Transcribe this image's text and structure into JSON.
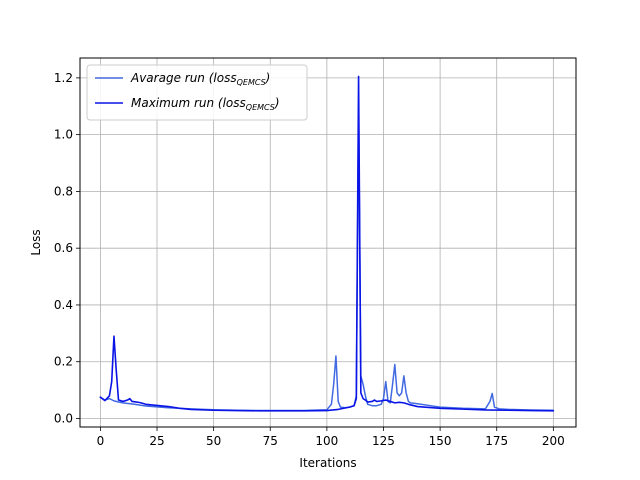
{
  "chart_data": {
    "type": "line",
    "xlabel": "Iterations",
    "ylabel": "Loss",
    "xlim": [
      -9,
      210
    ],
    "ylim": [
      -0.03,
      1.27
    ],
    "x_ticks": [
      0,
      25,
      50,
      75,
      100,
      125,
      150,
      175,
      200
    ],
    "y_ticks": [
      0.0,
      0.2,
      0.4,
      0.6,
      0.8,
      1.0,
      1.2
    ],
    "x_tick_labels": [
      "0",
      "25",
      "50",
      "75",
      "100",
      "125",
      "150",
      "175",
      "200"
    ],
    "y_tick_labels": [
      "0.0",
      "0.2",
      "0.4",
      "0.6",
      "0.8",
      "1.0",
      "1.2"
    ],
    "grid": true,
    "legend_position": "top-left",
    "series": [
      {
        "name": "Avarage run (loss_QEMCS)",
        "legend_main": "Avarage run (loss",
        "legend_sub": "QEMCS",
        "legend_close": ")",
        "color": "#4169e1",
        "x": [
          0,
          2,
          4,
          6,
          8,
          10,
          15,
          20,
          30,
          40,
          50,
          60,
          70,
          80,
          90,
          100,
          102,
          103,
          104,
          105,
          106,
          108,
          110,
          112,
          113,
          114,
          115,
          116,
          117,
          118,
          120,
          122,
          124,
          125,
          126,
          127,
          128,
          129,
          130,
          131,
          132,
          133,
          134,
          135,
          136,
          137,
          140,
          145,
          150,
          160,
          170,
          172,
          173,
          174,
          176,
          180,
          190,
          200
        ],
        "y": [
          0.075,
          0.065,
          0.07,
          0.062,
          0.058,
          0.055,
          0.05,
          0.044,
          0.038,
          0.034,
          0.031,
          0.029,
          0.028,
          0.028,
          0.028,
          0.031,
          0.05,
          0.12,
          0.22,
          0.06,
          0.04,
          0.038,
          0.04,
          0.045,
          0.08,
          1.1,
          0.15,
          0.12,
          0.08,
          0.05,
          0.045,
          0.045,
          0.05,
          0.07,
          0.13,
          0.06,
          0.055,
          0.12,
          0.19,
          0.09,
          0.08,
          0.09,
          0.15,
          0.09,
          0.06,
          0.055,
          0.052,
          0.046,
          0.04,
          0.036,
          0.034,
          0.06,
          0.088,
          0.04,
          0.034,
          0.032,
          0.03,
          0.029
        ]
      },
      {
        "name": "Maximum run (loss_QEMCS)",
        "legend_main": "Maximum run (loss",
        "legend_sub": "QEMCS",
        "legend_close": ")",
        "color": "#0a14e6",
        "x": [
          0,
          2,
          4,
          5,
          6,
          7,
          8,
          10,
          12,
          13,
          14,
          16,
          18,
          20,
          25,
          30,
          35,
          40,
          50,
          60,
          70,
          80,
          90,
          100,
          105,
          110,
          112,
          113,
          114,
          115,
          116,
          117,
          118,
          120,
          121,
          122,
          124,
          126,
          128,
          130,
          132,
          134,
          136,
          140,
          150,
          160,
          170,
          180,
          190,
          200
        ],
        "y": [
          0.075,
          0.063,
          0.08,
          0.13,
          0.29,
          0.17,
          0.065,
          0.06,
          0.065,
          0.07,
          0.06,
          0.058,
          0.055,
          0.05,
          0.046,
          0.042,
          0.036,
          0.032,
          0.029,
          0.028,
          0.027,
          0.027,
          0.027,
          0.028,
          0.032,
          0.04,
          0.045,
          0.07,
          1.205,
          0.09,
          0.07,
          0.065,
          0.058,
          0.06,
          0.065,
          0.06,
          0.062,
          0.065,
          0.06,
          0.055,
          0.057,
          0.055,
          0.05,
          0.042,
          0.036,
          0.033,
          0.03,
          0.029,
          0.028,
          0.027
        ]
      }
    ]
  }
}
